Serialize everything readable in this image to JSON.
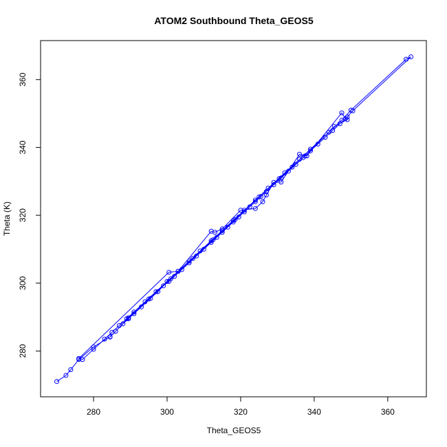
{
  "chart_data": {
    "type": "scatter",
    "title": "ATOM2 Southbound Theta_GEOS5",
    "xlabel": "Theta_GEOS5",
    "ylabel": "Theta (K)",
    "xlim": [
      265.6,
      370.5
    ],
    "ylim": [
      266.5,
      371.5
    ],
    "xticks": [
      280,
      300,
      320,
      340,
      360
    ],
    "yticks": [
      280,
      300,
      320,
      340,
      360
    ],
    "grid": false,
    "legend": "none",
    "marker": "open-circle",
    "lines_connected": true,
    "color": "#0000ff",
    "series": [
      {
        "x": [
          270.0,
          272.5,
          273.8,
          276.0,
          280.0,
          284.5,
          286.0,
          288.0,
          289.5,
          291.0,
          293.0,
          295.5,
          297.5,
          299.0,
          300.5,
          302.0,
          304.0,
          306.0,
          308.0,
          310.0,
          312.0,
          313.5,
          315.0,
          316.5,
          318.0,
          319.5,
          321.0,
          322.5,
          324.0,
          325.5,
          327.0,
          329.0,
          331.0,
          333.0,
          335.0,
          337.0,
          339.0,
          341.0,
          343.0,
          345.0,
          347.0,
          349.0,
          350.5,
          366.3,
          365.0,
          350.0,
          347.5,
          344.0,
          339.0,
          336.0,
          332.0,
          327.5,
          324.0,
          321.0,
          318.0,
          315.0,
          312.0,
          309.0,
          306.0,
          303.0,
          300.0,
          297.0,
          294.0,
          291.0,
          289.0,
          287.0,
          285.0,
          283.0,
          280.0,
          277.0,
          276.0,
          300.5,
          303.0,
          312.0,
          313.0,
          315.0,
          320.0,
          324.0,
          326.0,
          327.0,
          329.0,
          331.0,
          336.0,
          338.0,
          347.5,
          348.5,
          349.0,
          345.5,
          337.5,
          334.0,
          330.5,
          325.0,
          318.5,
          312.5,
          307.0,
          301.0,
          295.0,
          289.5,
          284.5
        ],
        "y": [
          271.0,
          272.8,
          274.5,
          277.5,
          281.2,
          284.2,
          285.8,
          288.0,
          289.5,
          291.0,
          293.0,
          295.5,
          297.5,
          299.2,
          300.5,
          302.0,
          304.0,
          306.0,
          308.0,
          310.0,
          312.0,
          313.5,
          315.0,
          316.5,
          318.0,
          319.5,
          321.0,
          322.5,
          324.0,
          325.5,
          327.0,
          329.0,
          331.0,
          333.0,
          335.0,
          337.0,
          339.0,
          341.0,
          343.0,
          345.0,
          347.0,
          349.0,
          350.8,
          366.7,
          366.0,
          351.0,
          348.0,
          344.5,
          339.5,
          336.5,
          332.5,
          328.0,
          324.5,
          321.5,
          318.5,
          315.5,
          312.5,
          309.5,
          306.5,
          303.5,
          300.5,
          297.5,
          294.5,
          291.5,
          289.5,
          287.5,
          285.5,
          283.5,
          280.5,
          277.5,
          277.8,
          303.2,
          303.5,
          315.3,
          315.0,
          316.0,
          321.5,
          322.0,
          324.0,
          326.0,
          329.7,
          329.8,
          338.0,
          337.5,
          350.2,
          348.5,
          348.2,
          346.2,
          337.5,
          334.2,
          330.8,
          325.4,
          318.8,
          312.8,
          307.3,
          301.3,
          295.3,
          289.8,
          284.1
        ]
      }
    ]
  }
}
